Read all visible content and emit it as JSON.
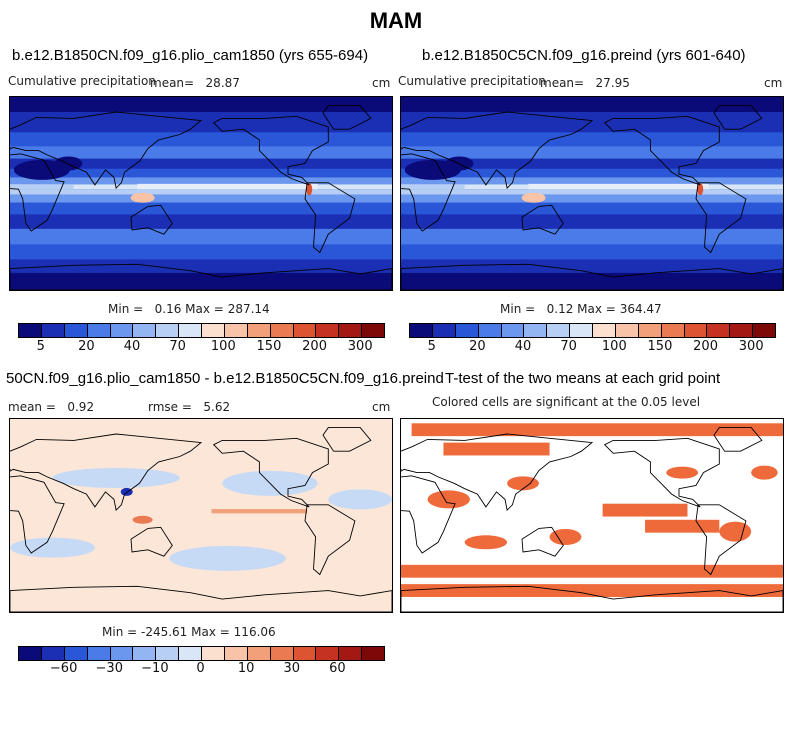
{
  "figure_title": "MAM",
  "panels": {
    "top_left": {
      "title": "b.e12.B1850CN.f09_g16.plio_cam1850 (yrs 655-694)",
      "left_label": "Cumulative precipitation",
      "mean_label": "mean=",
      "mean_value": "28.87",
      "units": "cm",
      "min_label": "Min =",
      "min_value": "0.16",
      "max_label": "Max =",
      "max_value": "287.14"
    },
    "top_right": {
      "title": "b.e12.B1850C5CN.f09_g16.preind (yrs 601-640)",
      "left_label": "Cumulative precipitation",
      "mean_label": "mean=",
      "mean_value": "27.95",
      "units": "cm",
      "min_label": "Min =",
      "min_value": "0.12",
      "max_label": "Max =",
      "max_value": "364.47"
    },
    "bottom_left": {
      "title": "50CN.f09_g16.plio_cam1850 - b.e12.B1850C5CN.f09_g16.preind",
      "mean_label": "mean =",
      "mean_value": "0.92",
      "rmse_label": "rmse =",
      "rmse_value": "5.62",
      "units": "cm",
      "min_label": "Min =",
      "min_value": "-245.61",
      "max_label": "Max =",
      "max_value": "116.06"
    },
    "bottom_right": {
      "title": "T-test of the two means at each grid point",
      "subtitle": "Colored cells are significant at the 0.05 level"
    }
  },
  "colorbars": {
    "precip": {
      "colors": [
        "#0a0a78",
        "#1a2fb4",
        "#2a56d8",
        "#4a7be8",
        "#6b98ee",
        "#93b6f2",
        "#b7cff5",
        "#d8e6f8",
        "#fbe0d0",
        "#f8c3a6",
        "#f2a07a",
        "#ea7a52",
        "#dd5432",
        "#c63221",
        "#a31812",
        "#7c0808"
      ],
      "tick_labels": [
        "5",
        "20",
        "40",
        "70",
        "100",
        "150",
        "200",
        "300"
      ]
    },
    "diff": {
      "colors": [
        "#0a0a78",
        "#1a2fb4",
        "#2a56d8",
        "#4a7be8",
        "#6b98ee",
        "#93b6f2",
        "#b7cff5",
        "#d8e6f8",
        "#fbe0d0",
        "#f8c3a6",
        "#f2a07a",
        "#ea7a52",
        "#dd5432",
        "#c63221",
        "#a31812",
        "#7c0808"
      ],
      "tick_labels": [
        "-60",
        "-30",
        "-10",
        "0",
        "10",
        "30",
        "60"
      ]
    }
  },
  "map_colors": {
    "ocean_base": "#2a56d8",
    "land_base": "#4a7be8",
    "itcz": "#e8eef8",
    "dry": "#0a0a78",
    "diff_base": "#fbe6d8",
    "diff_neg": "#c6daf5",
    "ttest_fill": "#ef6a3a"
  },
  "map_cells": {
    "precip_bands": [
      {
        "lat": 88,
        "color": "#0a0a78"
      },
      {
        "lat": 64,
        "color": "#1a2fb4"
      },
      {
        "lat": 50,
        "color": "#2a56d8"
      },
      {
        "lat": 38,
        "color": "#4a7be8"
      },
      {
        "lat": 27,
        "color": "#1a2fb4"
      },
      {
        "lat": 19,
        "color": "#2a56d8"
      },
      {
        "lat": 11,
        "color": "#6b98ee"
      },
      {
        "lat": 6,
        "color": "#d8e6f8"
      },
      {
        "lat": 2,
        "color": "#b7cff5"
      },
      {
        "lat": -4,
        "color": "#6b98ee"
      },
      {
        "lat": -13,
        "color": "#2a56d8"
      },
      {
        "lat": -26,
        "color": "#1a2fb4"
      },
      {
        "lat": -40,
        "color": "#4a7be8"
      },
      {
        "lat": -55,
        "color": "#2a56d8"
      },
      {
        "lat": -68,
        "color": "#1a2fb4"
      },
      {
        "lat": -80,
        "color": "#0a0a78"
      }
    ],
    "ttest_bands": [
      {
        "lat": 80,
        "lon0": 10,
        "lon1": 360
      },
      {
        "lat": 62,
        "lon0": 40,
        "lon1": 140
      },
      {
        "lat": 5,
        "lon0": 190,
        "lon1": 270
      },
      {
        "lat": -10,
        "lon0": 230,
        "lon1": 300
      },
      {
        "lat": -52,
        "lon0": 0,
        "lon1": 360
      },
      {
        "lat": -70,
        "lon0": 0,
        "lon1": 360
      }
    ]
  }
}
